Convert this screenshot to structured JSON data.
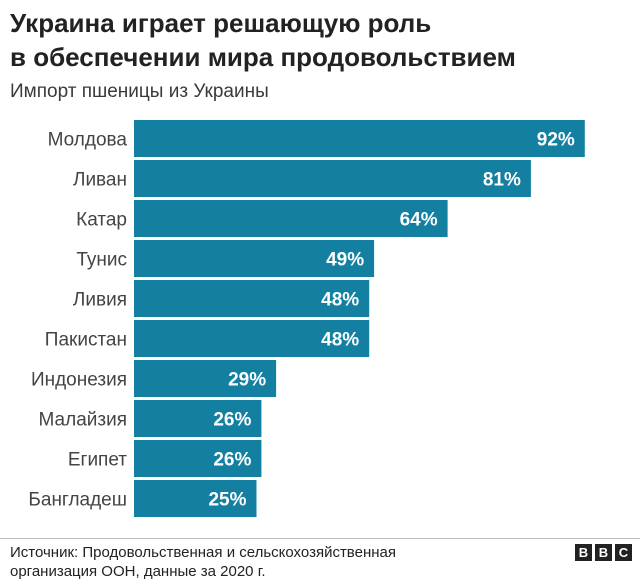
{
  "header": {
    "title_line1": "Украина играет решающую роль",
    "title_line2": "в обеспечении мира продовольствием",
    "subtitle": "Импорт пшеницы из Украины"
  },
  "chart_data": {
    "type": "bar",
    "orientation": "horizontal",
    "title": "Украина играет решающую роль в обеспечении мира продовольствием",
    "subtitle": "Импорт пшеницы из Украины",
    "categories": [
      "Молдова",
      "Ливан",
      "Катар",
      "Тунис",
      "Ливия",
      "Пакистан",
      "Индонезия",
      "Малайзия",
      "Египет",
      "Бангладеш"
    ],
    "values": [
      92,
      81,
      64,
      49,
      48,
      48,
      29,
      26,
      26,
      25
    ],
    "value_labels": [
      "92%",
      "81%",
      "64%",
      "49%",
      "48%",
      "48%",
      "29%",
      "26%",
      "26%",
      "25%"
    ],
    "unit": "%",
    "xlim": [
      0,
      100
    ],
    "grid": false,
    "bar_color": "#1380a1"
  },
  "footer": {
    "source_line1": "Источник: Продовольственная и сельскохозяйственная",
    "source_line2": "организация ООН, данные за 2020 г.",
    "logo_letters": [
      "B",
      "B",
      "C"
    ]
  }
}
